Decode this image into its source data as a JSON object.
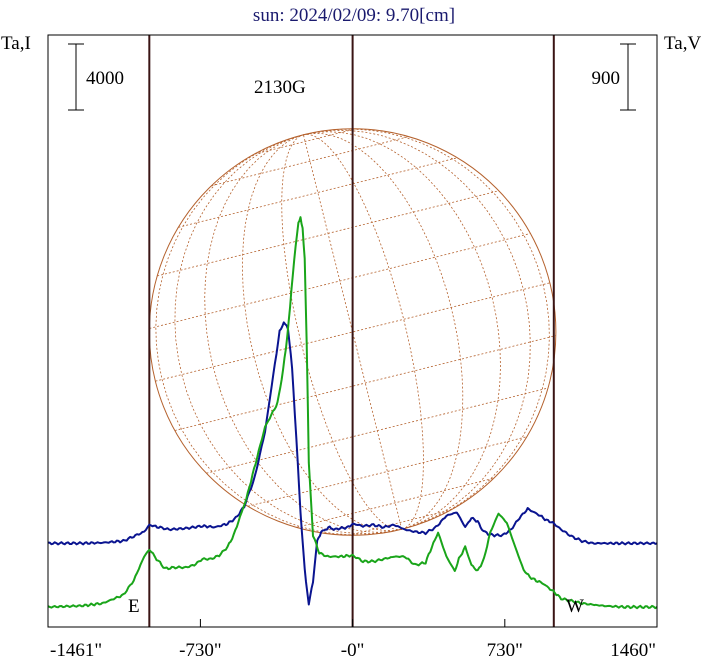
{
  "chart_data": {
    "type": "line",
    "title": "sun: 2024/02/09: 9.70[cm]",
    "ylabel_left": "Ta,I",
    "ylabel_right": "Ta,V",
    "scale_left": "4000",
    "scale_right": "900",
    "annotation": "2130G",
    "east_label": "E",
    "west_label": "W",
    "xlim": [
      -1461,
      1460
    ],
    "xticks": [
      {
        "value": -1461,
        "label": "-1461\""
      },
      {
        "value": -730,
        "label": "-730\""
      },
      {
        "value": 0,
        "label": "-0\""
      },
      {
        "value": 730,
        "label": "730\""
      },
      {
        "value": 1460,
        "label": "1460\""
      }
    ],
    "vlines": [
      -975,
      0,
      965
    ],
    "solar_radius": 975,
    "colors": {
      "intensity": "#0a1490",
      "polarization": "#1aa51a",
      "disk": "#b5622e",
      "vline": "#3a1414",
      "frame": "#000000"
    },
    "series": [
      {
        "name": "I",
        "color": "#0a1490",
        "x": [
          -1461,
          -1300,
          -1200,
          -1100,
          -1050,
          -1000,
          -975,
          -930,
          -880,
          -800,
          -720,
          -660,
          -600,
          -560,
          -520,
          -470,
          -420,
          -380,
          -350,
          -330,
          -310,
          -290,
          -270,
          -250,
          -230,
          -210,
          -190,
          -170,
          -150,
          -130,
          -110,
          -90,
          -60,
          -20,
          0,
          50,
          100,
          150,
          200,
          250,
          300,
          350,
          400,
          450,
          500,
          540,
          570,
          600,
          620,
          650,
          680,
          720,
          760,
          800,
          840,
          870,
          900,
          930,
          960,
          1000,
          1050,
          1100,
          1150,
          1200,
          1300,
          1460
        ],
        "y": [
          -0.02,
          -0.02,
          -0.015,
          0.0,
          0.04,
          0.08,
          0.14,
          0.12,
          0.1,
          0.11,
          0.13,
          0.12,
          0.15,
          0.2,
          0.3,
          0.55,
          0.95,
          1.45,
          1.82,
          1.9,
          1.85,
          1.5,
          0.9,
          0.25,
          -0.25,
          -0.55,
          -0.35,
          0.0,
          0.08,
          0.1,
          0.12,
          0.1,
          0.11,
          0.12,
          0.15,
          0.13,
          0.14,
          0.12,
          0.14,
          0.1,
          0.08,
          0.07,
          0.12,
          0.22,
          0.25,
          0.12,
          0.2,
          0.17,
          0.1,
          0.06,
          0.05,
          0.05,
          0.1,
          0.2,
          0.28,
          0.25,
          0.22,
          0.18,
          0.16,
          0.1,
          0.04,
          0.0,
          -0.02,
          -0.02,
          -0.02,
          -0.02
        ]
      },
      {
        "name": "V",
        "color": "#1aa51a",
        "x": [
          -1461,
          -1300,
          -1200,
          -1100,
          -1050,
          -1000,
          -975,
          -940,
          -900,
          -850,
          -800,
          -760,
          -720,
          -680,
          -640,
          -600,
          -570,
          -540,
          -510,
          -480,
          -450,
          -420,
          -390,
          -360,
          -340,
          -320,
          -300,
          -280,
          -260,
          -250,
          -240,
          -230,
          -220,
          -210,
          -190,
          -160,
          -120,
          -60,
          0,
          50,
          100,
          150,
          200,
          250,
          300,
          350,
          380,
          410,
          450,
          490,
          510,
          540,
          570,
          600,
          630,
          660,
          700,
          740,
          780,
          820,
          850,
          880,
          910,
          940,
          970,
          1000,
          1050,
          1100,
          1150,
          1200,
          1300,
          1460
        ],
        "y": [
          0.0,
          0.01,
          0.03,
          0.1,
          0.22,
          0.42,
          0.48,
          0.4,
          0.32,
          0.33,
          0.33,
          0.35,
          0.4,
          0.4,
          0.43,
          0.5,
          0.6,
          0.75,
          0.9,
          1.1,
          1.3,
          1.5,
          1.6,
          1.7,
          1.9,
          2.15,
          2.5,
          2.9,
          3.2,
          3.25,
          3.15,
          2.9,
          2.2,
          1.2,
          0.6,
          0.45,
          0.42,
          0.42,
          0.43,
          0.38,
          0.38,
          0.4,
          0.42,
          0.42,
          0.35,
          0.37,
          0.5,
          0.62,
          0.42,
          0.3,
          0.4,
          0.5,
          0.35,
          0.3,
          0.4,
          0.62,
          0.78,
          0.7,
          0.5,
          0.31,
          0.25,
          0.22,
          0.2,
          0.16,
          0.12,
          0.07,
          0.05,
          0.03,
          0.02,
          0.01,
          0.0,
          0.0
        ]
      }
    ]
  }
}
